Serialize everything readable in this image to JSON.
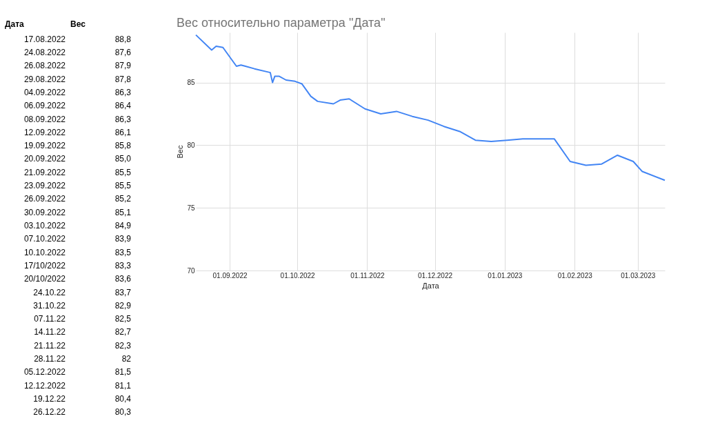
{
  "chart_data": [
    {
      "type": "other",
      "xlabel": "Дата",
      "ylabel": "Вес",
      "annotations": [
        "17.08.2022",
        "88,8",
        "24.08.2022",
        "87,6",
        "26.08.2022",
        "87,9",
        "29.08.2022",
        "87,8",
        "04.09.2022",
        "86,3",
        "06.09.2022",
        "86,4",
        "08.09.2022",
        "86,3",
        "12.09.2022",
        "86,1",
        "19.09.2022",
        "85,8",
        "20.09.2022",
        "85,0",
        "21.09.2022",
        "85,5",
        "23.09.2022",
        "85,5",
        "26.09.2022",
        "85,2",
        "30.09.2022",
        "85,1",
        "03.10.2022",
        "84,9",
        "07.10.2022",
        "83,9",
        "10.10.2022",
        "83,5",
        "17/10/2022",
        "83,3",
        "20/10/2022",
        "83,6",
        "24.10.22",
        "83,7",
        "31.10.22",
        "82,9",
        "07.11.22",
        "82,5",
        "14.11.22",
        "82,7",
        "21.11.22",
        "82,3",
        "28.11.22",
        "82",
        "05.12.2022",
        "81,5",
        "12.12.2022",
        "81,1",
        "19.12.22",
        "80,4",
        "26.12.22",
        "80,3"
      ]
    },
    {
      "type": "line",
      "title": "Вес относительно параметра \"Дата\"",
      "xlabel": "Дата",
      "ylabel": "Вес",
      "x": [
        "2022-08-17",
        "2022-08-24",
        "2022-08-26",
        "2022-08-29",
        "2022-09-04",
        "2022-09-06",
        "2022-09-08",
        "2022-09-12",
        "2022-09-19",
        "2022-09-20",
        "2022-09-21",
        "2022-09-23",
        "2022-09-26",
        "2022-09-30",
        "2022-10-03",
        "2022-10-07",
        "2022-10-10",
        "2022-10-17",
        "2022-10-20",
        "2022-10-24",
        "2022-10-31",
        "2022-11-07",
        "2022-11-14",
        "2022-11-21",
        "2022-11-28",
        "2022-12-05",
        "2022-12-12",
        "2022-12-19",
        "2022-12-26",
        "2023-01-02",
        "2023-01-09",
        "2023-01-23",
        "2023-01-30",
        "2023-02-06",
        "2023-02-13",
        "2023-02-20",
        "2023-02-27",
        "2023-03-03",
        "2023-03-13"
      ],
      "series": [
        {
          "color": "#4285f4",
          "values": [
            88.8,
            87.6,
            87.9,
            87.8,
            86.3,
            86.4,
            86.3,
            86.1,
            85.8,
            85.0,
            85.5,
            85.5,
            85.2,
            85.1,
            84.9,
            83.9,
            83.5,
            83.3,
            83.6,
            83.7,
            82.9,
            82.5,
            82.7,
            82.3,
            82,
            81.5,
            81.1,
            80.4,
            80.3,
            80.4,
            80.5,
            80.5,
            78.7,
            78.4,
            78.5,
            79.2,
            78.7,
            77.9,
            77.2
          ]
        }
      ],
      "xlim": [
        "2022-08-17",
        "2023-03-13"
      ],
      "xticks": [
        {
          "value": "2022-09-01",
          "label": "01.09.2022"
        },
        {
          "value": "2022-10-01",
          "label": "01.10.2022"
        },
        {
          "value": "2022-11-01",
          "label": "01.11.2022"
        },
        {
          "value": "2022-12-01",
          "label": "01.12.2022"
        },
        {
          "value": "2023-01-01",
          "label": "01.01.2023"
        },
        {
          "value": "2023-02-01",
          "label": "01.02.2023"
        },
        {
          "value": "2023-03-01",
          "label": "01.03.2023"
        }
      ],
      "ylim": [
        70,
        89
      ],
      "yticks": [
        70,
        75,
        80,
        85
      ],
      "grid": true,
      "marker": "none",
      "line_style": "solid"
    }
  ]
}
